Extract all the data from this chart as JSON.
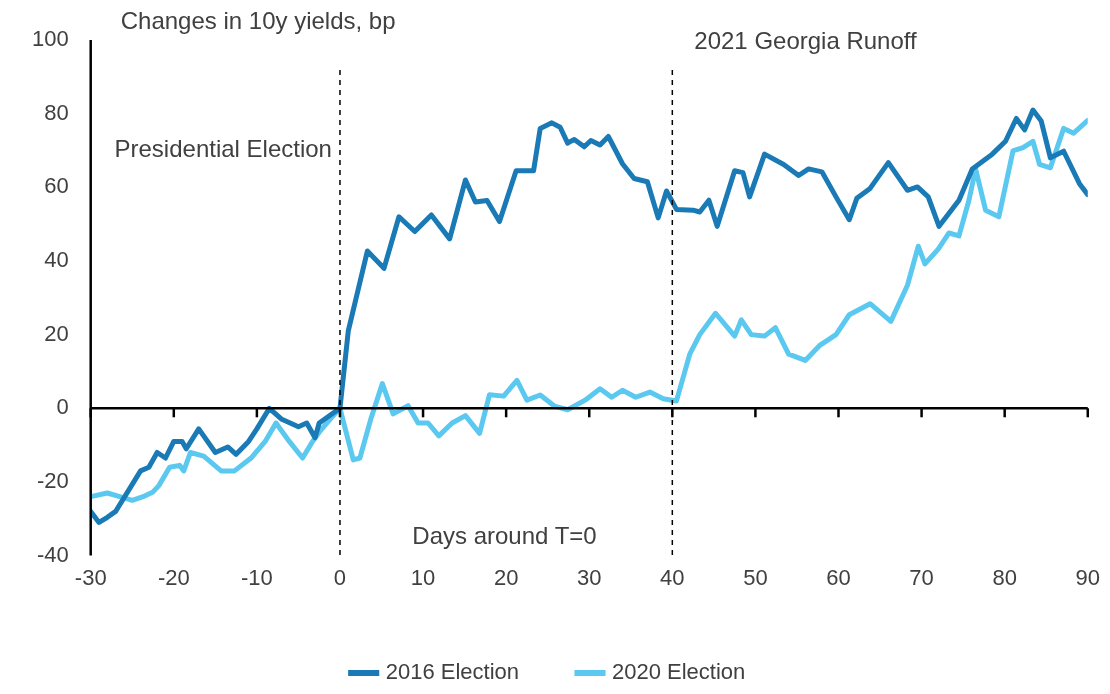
{
  "chart_data": {
    "type": "line",
    "title": "Changes in 10y yields, bp",
    "xlabel": "Days around T=0",
    "xlim": [
      -30,
      90
    ],
    "xticks": [
      -30,
      -20,
      -10,
      0,
      10,
      20,
      30,
      40,
      50,
      60,
      70,
      80,
      90
    ],
    "ylim": [
      -40,
      100
    ],
    "yticks": [
      -40,
      -20,
      0,
      20,
      40,
      60,
      80,
      100
    ],
    "grid": false,
    "legend": "bottom",
    "marker": "none",
    "line_style": "solid",
    "ref_lines": [
      {
        "axis": "x",
        "value": 0,
        "label": "Presidential Election",
        "color": "#000000",
        "line_style": "dashed"
      },
      {
        "axis": "x",
        "value": 40,
        "label": "2021 Georgia Runoff",
        "color": "#000000",
        "line_style": "dashed"
      }
    ],
    "series": [
      {
        "name": "2016 Election",
        "color": "#1a7ab5",
        "x": [
          -30,
          -29,
          -28,
          -27,
          -24,
          -23,
          -22,
          -21,
          -20,
          -19,
          -18.5,
          -17,
          -15,
          -13.5,
          -12.5,
          -11,
          -10,
          -8.5,
          -7,
          -5,
          -4,
          -3,
          -2.5,
          0,
          1,
          3.3,
          5.3,
          7.1,
          9,
          11,
          13.2,
          15.1,
          16.3,
          17.7,
          19.2,
          21.2,
          23.3,
          24.1,
          25.5,
          26.5,
          27.4,
          28.2,
          29.4,
          30.2,
          31.3,
          32.3,
          34,
          35.4,
          37,
          38.3,
          39.3,
          40.5,
          42.5,
          43.3,
          44.4,
          45.4,
          47.5,
          48.5,
          49.3,
          51.1,
          53.4,
          55.2,
          56.4,
          58,
          59.7,
          61.3,
          62.2,
          63.8,
          66,
          68.3,
          69.5,
          70.8,
          72.1,
          74.5,
          76.1,
          78.5,
          80.1,
          81.4,
          82.4,
          83.4,
          84.4,
          85.5,
          87.1,
          89,
          90
        ],
        "values": [
          -28,
          -31,
          -29.6,
          -28,
          -17,
          -16,
          -12,
          -13.5,
          -9,
          -9,
          -11,
          -5.6,
          -12,
          -10.5,
          -12.5,
          -9,
          -5.6,
          0,
          -3,
          -5,
          -4,
          -8,
          -4,
          0,
          21,
          42.7,
          38,
          52,
          48,
          52.5,
          46,
          62,
          56,
          56.4,
          50.7,
          64.5,
          64.5,
          76,
          77.5,
          76.3,
          72,
          73,
          71,
          72.7,
          71.5,
          73.8,
          66.4,
          62.4,
          61.5,
          51.7,
          59,
          54,
          53.8,
          53.3,
          56.5,
          49.4,
          64.5,
          64,
          57.4,
          69,
          66.2,
          63.2,
          65,
          64.2,
          57.4,
          51.2,
          57,
          59.7,
          66.7,
          59.2,
          60.1,
          57.4,
          49.4,
          56.5,
          65,
          69,
          72.5,
          78.7,
          75.6,
          81,
          78,
          68,
          69.8,
          61,
          58
        ]
      },
      {
        "name": "2020 Election",
        "color": "#5bc8f0",
        "x": [
          -30,
          -28,
          -26.5,
          -25,
          -23.7,
          -22.5,
          -21.8,
          -20.5,
          -19.3,
          -18.8,
          -18,
          -16.4,
          -14.3,
          -12.7,
          -10.7,
          -9,
          -7.7,
          -6.1,
          -4.5,
          -3.3,
          -2.5,
          -1.2,
          0,
          1.6,
          2.4,
          3.7,
          5.1,
          6.4,
          8.2,
          9.4,
          10.6,
          11.9,
          13.5,
          15.1,
          16.8,
          18,
          19.7,
          21.3,
          22.5,
          24.1,
          25.8,
          27.4,
          29.5,
          31.3,
          32.7,
          34,
          35.6,
          37.3,
          38.9,
          40.5,
          42.1,
          43.3,
          45.2,
          47.5,
          48.3,
          49.5,
          51.1,
          52.4,
          54,
          56,
          57.7,
          59.7,
          61.3,
          63.8,
          66.3,
          68.3,
          69.6,
          70.4,
          72,
          73.3,
          74.5,
          75.7,
          76.5,
          77.7,
          79.3,
          81,
          82.2,
          83.4,
          84.2,
          85.5,
          87.1,
          88.3,
          90
        ],
        "values": [
          -24,
          -23,
          -24,
          -25,
          -24,
          -22.7,
          -21,
          -16,
          -15.5,
          -17,
          -12,
          -13,
          -17,
          -17,
          -13.5,
          -9,
          -4,
          -9,
          -13.5,
          -9,
          -6.5,
          -3,
          0,
          -14,
          -13.5,
          -3,
          6.7,
          -1.5,
          0.7,
          -4,
          -4,
          -7.5,
          -4,
          -2,
          -6.8,
          3.7,
          3.3,
          7.6,
          2.2,
          3.6,
          0.6,
          -0.4,
          2.2,
          5.3,
          3,
          4.9,
          3,
          4.4,
          2.6,
          2,
          14.7,
          20,
          25.8,
          19.6,
          24,
          20,
          19.6,
          21.9,
          14.7,
          13,
          17,
          20,
          25.4,
          28.4,
          23.6,
          33.4,
          44,
          39.2,
          43.2,
          47.6,
          46.8,
          56.5,
          65,
          53.8,
          52,
          69.9,
          70.8,
          72.5,
          66.2,
          65.3,
          76,
          74.7,
          78.2
        ]
      }
    ]
  }
}
